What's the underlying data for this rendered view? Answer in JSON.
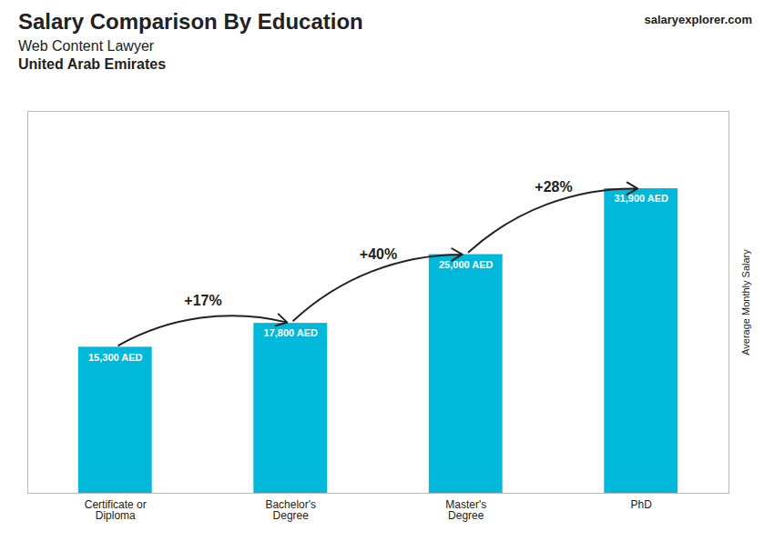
{
  "chart_data": {
    "type": "bar",
    "title": "Salary Comparison By Education",
    "subtitle": [
      "Web Content Lawyer",
      "United Arab Emirates"
    ],
    "brand": "salaryexplorer.com",
    "ylabel": "Average Monthly Salary",
    "categories": [
      "Certificate or\nDiploma",
      "Bachelor's\nDegree",
      "Master's\nDegree",
      "PhD"
    ],
    "values": [
      15300,
      17800,
      25000,
      31900
    ],
    "value_labels": [
      "15,300 AED",
      "17,800 AED",
      "25,000 AED",
      "31,900 AED"
    ],
    "data_labels": true,
    "annotations": [
      "+17%",
      "+40%",
      "+28%"
    ],
    "color": "#00b8d9",
    "ylim": [
      0,
      40000
    ],
    "tick_labels": "x",
    "grid": false
  }
}
